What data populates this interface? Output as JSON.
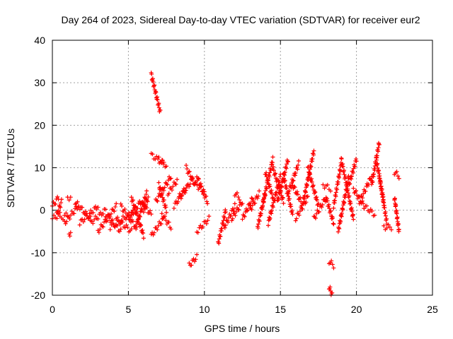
{
  "chart_data": {
    "type": "scatter",
    "title": "Day 264 of 2023, Sidereal Day-to-day VTEC variation (SDTVAR) for receiver eur2",
    "xlabel": "GPS time / hours",
    "ylabel": "SDTVAR / TECUs",
    "xlim": [
      0,
      25
    ],
    "ylim": [
      -20,
      40
    ],
    "xticks": [
      0,
      5,
      10,
      15,
      20,
      25
    ],
    "yticks": [
      -20,
      -10,
      0,
      10,
      20,
      30,
      40
    ],
    "grid": true,
    "legend": "none",
    "marker": "+",
    "color": "#ff0000",
    "segments": [
      {
        "x": [
          0.0,
          0.4
        ],
        "y": [
          1,
          3
        ]
      },
      {
        "x": [
          0.0,
          0.5
        ],
        "y": [
          -2,
          -1
        ]
      },
      {
        "x": [
          0.3,
          0.6
        ],
        "y": [
          -1,
          2
        ]
      },
      {
        "x": [
          0.5,
          1.0
        ],
        "y": [
          -2,
          -1
        ]
      },
      {
        "x": [
          1.0,
          1.2
        ],
        "y": [
          3,
          3
        ]
      },
      {
        "x": [
          1.1,
          1.2
        ],
        "y": [
          -5.5,
          -5.5
        ]
      },
      {
        "x": [
          0.8,
          1.7
        ],
        "y": [
          -3,
          1
        ]
      },
      {
        "x": [
          1.5,
          2.5
        ],
        "y": [
          2,
          -2
        ]
      },
      {
        "x": [
          1.8,
          3.0
        ],
        "y": [
          -3,
          1
        ]
      },
      {
        "x": [
          2.5,
          3.5
        ],
        "y": [
          -3,
          0
        ]
      },
      {
        "x": [
          3.0,
          4.2
        ],
        "y": [
          -5,
          1
        ]
      },
      {
        "x": [
          3.5,
          4.5
        ],
        "y": [
          -1,
          -5
        ]
      },
      {
        "x": [
          3.8,
          5.5
        ],
        "y": [
          -4,
          0
        ]
      },
      {
        "x": [
          4.2,
          5.2
        ],
        "y": [
          -2,
          -5
        ]
      },
      {
        "x": [
          4.5,
          5.5
        ],
        "y": [
          1,
          -4
        ]
      },
      {
        "x": [
          5.0,
          5.8
        ],
        "y": [
          -2,
          2
        ]
      },
      {
        "x": [
          5.2,
          6.0
        ],
        "y": [
          3,
          -6
        ]
      },
      {
        "x": [
          5.5,
          6.2
        ],
        "y": [
          -4,
          4
        ]
      },
      {
        "x": [
          5.8,
          6.5
        ],
        "y": [
          2,
          -1
        ]
      },
      {
        "x": [
          6.0,
          6.3
        ],
        "y": [
          0,
          3
        ]
      },
      {
        "x": [
          6.5,
          7.1
        ],
        "y": [
          32,
          23
        ]
      },
      {
        "x": [
          6.5,
          7.3
        ],
        "y": [
          13,
          11
        ]
      },
      {
        "x": [
          7.0,
          7.5
        ],
        "y": [
          12,
          10.5
        ]
      },
      {
        "x": [
          6.5,
          7.3
        ],
        "y": [
          -6,
          -2
        ]
      },
      {
        "x": [
          6.8,
          7.8
        ],
        "y": [
          2,
          8
        ]
      },
      {
        "x": [
          7.0,
          7.5
        ],
        "y": [
          6,
          0
        ]
      },
      {
        "x": [
          7.2,
          7.8
        ],
        "y": [
          -1,
          -4
        ]
      },
      {
        "x": [
          7.6,
          8.2
        ],
        "y": [
          4,
          7
        ]
      },
      {
        "x": [
          8.0,
          8.8
        ],
        "y": [
          1,
          5
        ]
      },
      {
        "x": [
          8.3,
          9.2
        ],
        "y": [
          3,
          7
        ]
      },
      {
        "x": [
          8.8,
          9.4
        ],
        "y": [
          10,
          6
        ]
      },
      {
        "x": [
          9.2,
          10.0
        ],
        "y": [
          7,
          4
        ]
      },
      {
        "x": [
          9.5,
          10.2
        ],
        "y": [
          8,
          2
        ]
      },
      {
        "x": [
          9.0,
          9.5
        ],
        "y": [
          -13,
          -11
        ]
      },
      {
        "x": [
          9.5,
          10.3
        ],
        "y": [
          -5,
          -2
        ]
      },
      {
        "x": [
          10.9,
          11.4
        ],
        "y": [
          -8,
          0
        ]
      },
      {
        "x": [
          11.3,
          12.0
        ],
        "y": [
          -4,
          1
        ]
      },
      {
        "x": [
          11.8,
          12.5
        ],
        "y": [
          -2,
          2
        ]
      },
      {
        "x": [
          12.0,
          12.3
        ],
        "y": [
          4,
          3
        ]
      },
      {
        "x": [
          12.5,
          13.2
        ],
        "y": [
          -2,
          3
        ]
      },
      {
        "x": [
          13.0,
          13.6
        ],
        "y": [
          0,
          4
        ]
      },
      {
        "x": [
          13.5,
          14.0
        ],
        "y": [
          -4,
          4
        ]
      },
      {
        "x": [
          13.8,
          14.5
        ],
        "y": [
          1,
          12
        ]
      },
      {
        "x": [
          14.0,
          14.5
        ],
        "y": [
          9,
          3
        ]
      },
      {
        "x": [
          14.2,
          15.0
        ],
        "y": [
          -3,
          8
        ]
      },
      {
        "x": [
          14.5,
          15.2
        ],
        "y": [
          10,
          2
        ]
      },
      {
        "x": [
          14.8,
          15.5
        ],
        "y": [
          2,
          12
        ]
      },
      {
        "x": [
          15.2,
          15.8
        ],
        "y": [
          8,
          -1
        ]
      },
      {
        "x": [
          15.5,
          16.2
        ],
        "y": [
          4,
          11
        ]
      },
      {
        "x": [
          15.8,
          16.5
        ],
        "y": [
          6,
          1
        ]
      },
      {
        "x": [
          16.0,
          16.8
        ],
        "y": [
          -2,
          3
        ]
      },
      {
        "x": [
          16.5,
          17.2
        ],
        "y": [
          2,
          14
        ]
      },
      {
        "x": [
          16.8,
          17.5
        ],
        "y": [
          10,
          1
        ]
      },
      {
        "x": [
          17.2,
          18.0
        ],
        "y": [
          -2,
          3
        ]
      },
      {
        "x": [
          17.8,
          18.3
        ],
        "y": [
          6,
          5
        ]
      },
      {
        "x": [
          18.0,
          18.5
        ],
        "y": [
          3,
          -3
        ]
      },
      {
        "x": [
          18.2,
          18.5
        ],
        "y": [
          -12,
          -13
        ]
      },
      {
        "x": [
          18.2,
          18.4
        ],
        "y": [
          -18,
          -20
        ]
      },
      {
        "x": [
          18.5,
          19.0
        ],
        "y": [
          1,
          11
        ]
      },
      {
        "x": [
          18.8,
          19.5
        ],
        "y": [
          -5,
          8
        ]
      },
      {
        "x": [
          19.0,
          19.8
        ],
        "y": [
          12,
          -2
        ]
      },
      {
        "x": [
          19.5,
          20.0
        ],
        "y": [
          6,
          12
        ]
      },
      {
        "x": [
          19.8,
          20.5
        ],
        "y": [
          5,
          1
        ]
      },
      {
        "x": [
          20.2,
          21.0
        ],
        "y": [
          2,
          8
        ]
      },
      {
        "x": [
          20.5,
          21.2
        ],
        "y": [
          1,
          -1
        ]
      },
      {
        "x": [
          21.0,
          21.5
        ],
        "y": [
          6,
          16
        ]
      },
      {
        "x": [
          21.3,
          21.8
        ],
        "y": [
          12,
          2
        ]
      },
      {
        "x": [
          21.5,
          22.0
        ],
        "y": [
          8,
          -3
        ]
      },
      {
        "x": [
          21.8,
          22.3
        ],
        "y": [
          -4,
          -4
        ]
      },
      {
        "x": [
          22.5,
          22.8
        ],
        "y": [
          9,
          8
        ]
      },
      {
        "x": [
          22.5,
          22.8
        ],
        "y": [
          3,
          -5
        ]
      }
    ]
  }
}
